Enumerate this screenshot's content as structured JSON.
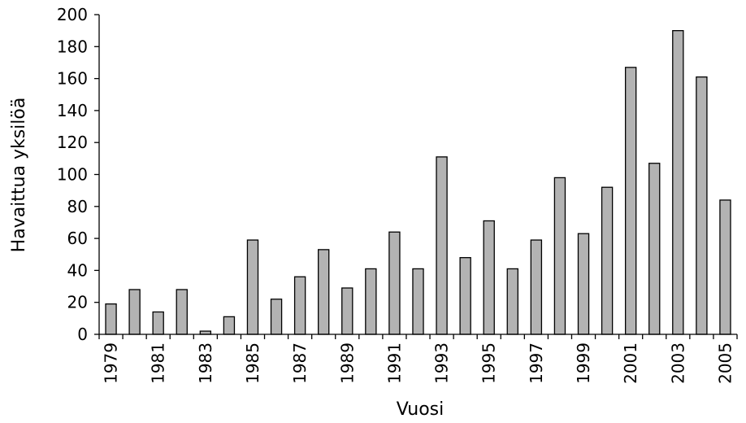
{
  "chart_data": {
    "type": "bar",
    "xlabel": "Vuosi",
    "ylabel": "Havaittua yksilöä",
    "ylim": [
      0,
      200
    ],
    "yticks": [
      0,
      20,
      40,
      60,
      80,
      100,
      120,
      140,
      160,
      180,
      200
    ],
    "grid": false,
    "legend": "none",
    "categories": [
      "1979",
      "1980",
      "1981",
      "1982",
      "1983",
      "1984",
      "1985",
      "1986",
      "1987",
      "1988",
      "1989",
      "1990",
      "1991",
      "1992",
      "1993",
      "1994",
      "1995",
      "1996",
      "1997",
      "1998",
      "1999",
      "2000",
      "2001",
      "2002",
      "2003",
      "2004",
      "2005"
    ],
    "tick_label_every": 2,
    "values": [
      19,
      28,
      14,
      28,
      2,
      11,
      59,
      22,
      36,
      53,
      29,
      41,
      64,
      41,
      111,
      48,
      71,
      41,
      59,
      98,
      63,
      92,
      167,
      107,
      190,
      161,
      84
    ],
    "bar_color": "#b3b3b3",
    "bar_edge_color": "#000000"
  }
}
